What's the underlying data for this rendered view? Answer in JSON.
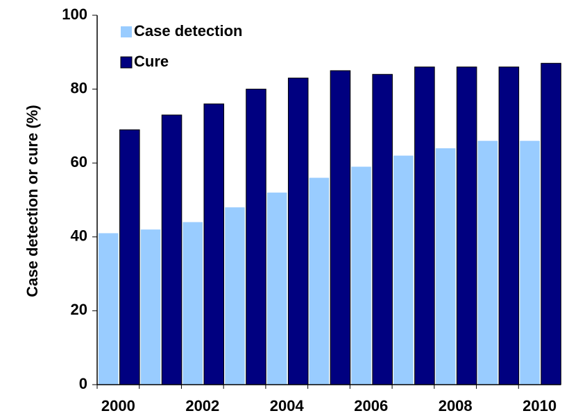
{
  "chart_data": {
    "type": "bar",
    "y_label": "Case detection or cure (%)",
    "categories": [
      "2000",
      null,
      "2002",
      null,
      "2004",
      null,
      "2006",
      null,
      "2008",
      null,
      "2010"
    ],
    "series": [
      {
        "name": "Case detection",
        "color": "#99ccff",
        "values": [
          41,
          42,
          44,
          48,
          52,
          56,
          59,
          62,
          64,
          66,
          66
        ]
      },
      {
        "name": "Cure",
        "color": "#000080",
        "values": [
          69,
          73,
          76,
          80,
          83,
          85,
          84,
          86,
          86,
          86,
          87
        ]
      }
    ],
    "ylim": [
      0,
      100
    ],
    "yticks": [
      0,
      20,
      40,
      60,
      80,
      100
    ],
    "grid": false,
    "legend": "upper-left"
  }
}
